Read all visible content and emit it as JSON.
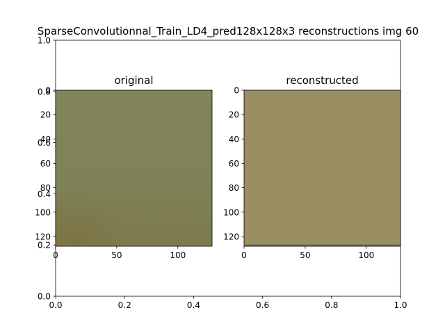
{
  "figure": {
    "title": "SparseConvolutionnal_Train_LD4_pred128x128x3 reconstructions img 60"
  },
  "colors": {
    "original_fill": "#7f8256",
    "original_top": "#818559",
    "original_bottom": "#7c7a4e",
    "original_corner": "#7e7344",
    "reconstructed_fill": "#9a8f62",
    "reconstructed_edge": "#6f6a4c",
    "axis": "#000000"
  },
  "chart_data": [
    {
      "type": "axes",
      "role": "outer",
      "title": "SparseConvolutionnal_Train_LD4_pred128x128x3 reconstructions img 60",
      "xlim": [
        0.0,
        1.0
      ],
      "ylim": [
        0.0,
        1.0
      ],
      "xticks": [
        "0.0",
        "0.2",
        "0.4",
        "0.6",
        "0.8",
        "1.0"
      ],
      "yticks": [
        "0.0",
        "0.2",
        "0.4",
        "0.6",
        "0.8",
        "1.0"
      ],
      "grid": false
    },
    {
      "type": "heatmap",
      "role": "image",
      "title": "original",
      "xlim": [
        0,
        128
      ],
      "ylim": [
        128,
        0
      ],
      "xticks": [
        "0",
        "50",
        "100"
      ],
      "yticks": [
        "0",
        "20",
        "40",
        "60",
        "80",
        "100",
        "120"
      ],
      "grid": false
    },
    {
      "type": "heatmap",
      "role": "image",
      "title": "reconstructed",
      "xlim": [
        0,
        128
      ],
      "ylim": [
        128,
        0
      ],
      "xticks": [
        "0",
        "50",
        "100"
      ],
      "yticks": [
        "0",
        "20",
        "40",
        "60",
        "80",
        "100",
        "120"
      ],
      "grid": false
    }
  ]
}
